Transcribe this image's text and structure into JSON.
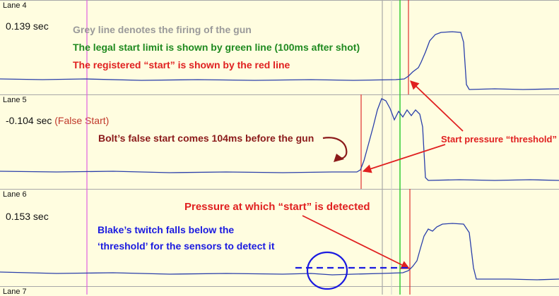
{
  "lanes": [
    {
      "label": "Lane 4",
      "time": "0.139 sec"
    },
    {
      "label": "Lane 5",
      "time": "-0.104 sec",
      "false_start": "(False Start)"
    },
    {
      "label": "Lane 6",
      "time": "0.153 sec"
    },
    {
      "label": "Lane 7"
    }
  ],
  "annotations": {
    "grey_line": "Grey line denotes the firing of the gun",
    "green_line": "The legal start limit is shown by green line (100ms after shot)",
    "red_line": "The registered “start” is shown by the red line",
    "bolt": "Bolt’s false start comes 104ms before the gun",
    "threshold": "Start pressure “threshold”",
    "pressure": "Pressure at which “start” is detected",
    "blake_1": "Blake’s twitch falls below the",
    "blake_2": "‘threshold’ for the sensors to detect it"
  },
  "colors": {
    "background": "#fffde0",
    "gun_line": "#a8a8a8",
    "legal_limit_line": "#33cc33",
    "registered_start_line": "#e03030",
    "marker_line": "#e060e0",
    "trace": "#2a3faa",
    "annotation_grey": "#9a9a9a",
    "annotation_green": "#1f8a1f",
    "annotation_red": "#e02020",
    "annotation_darkred": "#8b1a1a",
    "annotation_blue": "#1a1ae0"
  }
}
